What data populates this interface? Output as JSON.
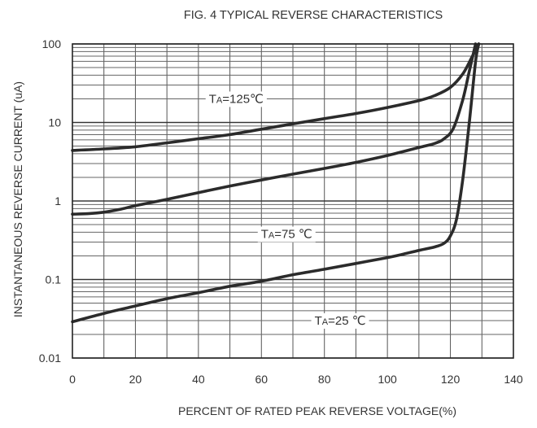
{
  "chart_data": {
    "type": "line",
    "title": "FIG. 4 TYPICAL REVERSE CHARACTERISTICS",
    "xlabel": "PERCENT OF RATED PEAK REVERSE VOLTAGE(%)",
    "ylabel": "INSTANTANEOUS REVERSE CURRENT (uA)",
    "xlim": [
      0,
      140
    ],
    "ylim": [
      0.01,
      100
    ],
    "yscale": "log",
    "grid": true,
    "x_ticks": [
      "0",
      "20",
      "40",
      "60",
      "80",
      "100",
      "120",
      "140"
    ],
    "y_ticks": [
      "0.01",
      "0.1",
      "1",
      "10",
      "100"
    ],
    "series": [
      {
        "name": "TA=125℃",
        "label_parts": {
          "t": "T",
          "sub": "A",
          "rest": "=125℃"
        },
        "points": [
          [
            0,
            4.4
          ],
          [
            10,
            4.6
          ],
          [
            20,
            4.9
          ],
          [
            30,
            5.5
          ],
          [
            40,
            6.2
          ],
          [
            50,
            7.0
          ],
          [
            60,
            8.2
          ],
          [
            70,
            9.6
          ],
          [
            80,
            11.2
          ],
          [
            90,
            13.0
          ],
          [
            100,
            15.5
          ],
          [
            110,
            19.0
          ],
          [
            115,
            22.0
          ],
          [
            120,
            28.0
          ],
          [
            124,
            42.0
          ],
          [
            127,
            70.0
          ],
          [
            129,
            100.0
          ]
        ]
      },
      {
        "name": "TA=75℃",
        "label_parts": {
          "t": "T",
          "sub": "A",
          "rest": "=75 ℃"
        },
        "points": [
          [
            0,
            0.68
          ],
          [
            5,
            0.69
          ],
          [
            10,
            0.72
          ],
          [
            15,
            0.78
          ],
          [
            20,
            0.87
          ],
          [
            30,
            1.05
          ],
          [
            40,
            1.28
          ],
          [
            50,
            1.55
          ],
          [
            60,
            1.85
          ],
          [
            70,
            2.2
          ],
          [
            80,
            2.6
          ],
          [
            90,
            3.1
          ],
          [
            100,
            3.8
          ],
          [
            110,
            4.8
          ],
          [
            115,
            5.4
          ],
          [
            118,
            6.2
          ],
          [
            121,
            8.5
          ],
          [
            124,
            20.0
          ],
          [
            126,
            45.0
          ],
          [
            128,
            100.0
          ]
        ]
      },
      {
        "name": "TA=25℃",
        "label_parts": {
          "t": "T",
          "sub": "A",
          "rest": "=25 ℃"
        },
        "points": [
          [
            0,
            0.029
          ],
          [
            10,
            0.037
          ],
          [
            20,
            0.046
          ],
          [
            30,
            0.057
          ],
          [
            40,
            0.068
          ],
          [
            50,
            0.082
          ],
          [
            60,
            0.095
          ],
          [
            70,
            0.115
          ],
          [
            80,
            0.135
          ],
          [
            90,
            0.16
          ],
          [
            100,
            0.19
          ],
          [
            105,
            0.21
          ],
          [
            110,
            0.235
          ],
          [
            115,
            0.26
          ],
          [
            118,
            0.29
          ],
          [
            120,
            0.36
          ],
          [
            122,
            0.6
          ],
          [
            124,
            2.0
          ],
          [
            126,
            10.0
          ],
          [
            128,
            60.0
          ],
          [
            129,
            100.0
          ]
        ]
      }
    ]
  }
}
